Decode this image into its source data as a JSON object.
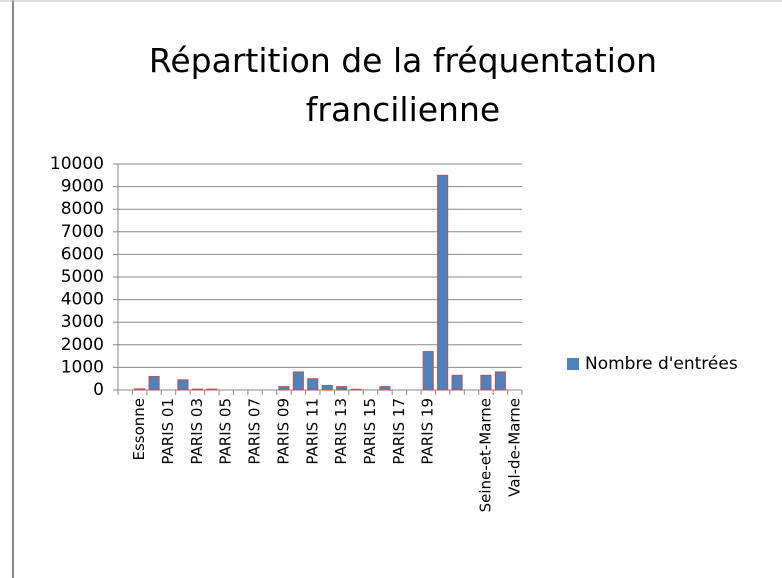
{
  "chart_data": {
    "type": "bar",
    "title": "Répartition de la fréquentation francilienne",
    "categories": [
      null,
      "Essonne",
      null,
      "PARIS 01",
      null,
      "PARIS 03",
      null,
      "PARIS 05",
      null,
      "PARIS 07",
      null,
      "PARIS 09",
      null,
      "PARIS 11",
      null,
      "PARIS 13",
      null,
      "PARIS 15",
      null,
      "PARIS 17",
      null,
      "PARIS 19",
      null,
      null,
      null,
      "Seine-et-Marne",
      null,
      "Val-de-Marne"
    ],
    "series": [
      {
        "name": "Nombre d'entrées",
        "color": "#4f81bd",
        "values": [
          0,
          50,
          600,
          0,
          450,
          40,
          40,
          0,
          0,
          0,
          0,
          150,
          800,
          500,
          200,
          150,
          30,
          0,
          150,
          0,
          0,
          1700,
          9500,
          650,
          0,
          650,
          800,
          0
        ]
      }
    ],
    "ylim": [
      0,
      10000
    ],
    "yticks": [
      0,
      1000,
      2000,
      3000,
      4000,
      5000,
      6000,
      7000,
      8000,
      9000,
      10000
    ],
    "grid": true,
    "legend": "right"
  }
}
